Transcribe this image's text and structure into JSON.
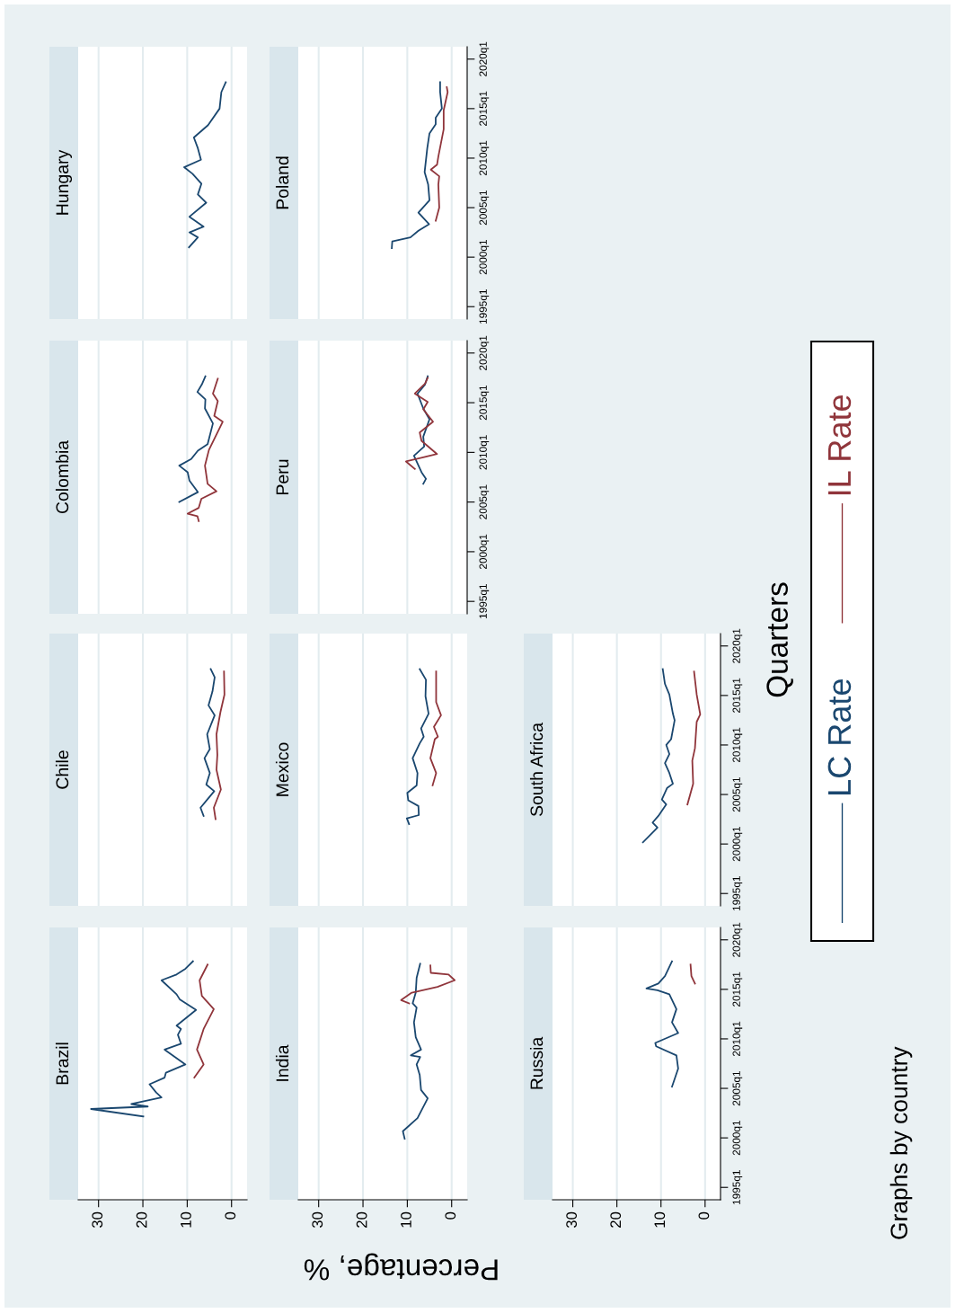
{
  "chart_data": [
    {
      "type": "line",
      "orientation": "horizontal",
      "title": "Brazil",
      "xlabel": "Percentage, %",
      "ylabel": "Quarters",
      "legend": "right",
      "annotations": [
        "Graphs by country"
      ],
      "xlim": [
        34.6,
        -3.5
      ],
      "xticks": [
        0,
        10,
        20,
        30
      ],
      "ylim": [
        "1993-10",
        "2021-04"
      ],
      "grid": "x",
      "tick_labels": "x",
      "series": [
        {
          "name": "LC Rate",
          "color": "#1a476f",
          "x": [
            "2002-03",
            "2002-12",
            "2003-03",
            "2003-06",
            "2004-02",
            "2004-08",
            "2005-06",
            "2006-02",
            "2006-08",
            "2007-06",
            "2008-12",
            "2009-07",
            "2010-06",
            "2011-01",
            "2011-05",
            "2012-12",
            "2014-01",
            "2014-07",
            "2015-12",
            "2016-07",
            "2017-02",
            "2017-11"
          ],
          "values": [
            19.9,
            31.7,
            18.9,
            22.6,
            15.8,
            17.0,
            18.5,
            15.1,
            14.8,
            10.4,
            15.1,
            11.4,
            12.1,
            11.4,
            12.4,
            8.0,
            11.7,
            12.4,
            15.8,
            12.4,
            10.4,
            8.7
          ]
        },
        {
          "name": "IL Rate",
          "color": "#90353b",
          "x": [
            "2006-02",
            "2007-06",
            "2008-12",
            "2011-01",
            "2013-01",
            "2014-05",
            "2015-12",
            "2017-07"
          ],
          "values": [
            8.4,
            6.3,
            7.8,
            6.3,
            4.0,
            6.7,
            7.2,
            5.4
          ]
        }
      ]
    },
    {
      "type": "line",
      "orientation": "horizontal",
      "title": "Chile",
      "xlim": [
        34.6,
        -3.5
      ],
      "xticks": [
        0,
        10,
        20,
        30
      ],
      "ylim": [
        "1993-10",
        "2021-04"
      ],
      "grid": "x",
      "tick_labels": false,
      "series": [
        {
          "color": "#1a476f",
          "x": [
            "2002-11",
            "2003-09",
            "2004-08",
            "2005-05",
            "2006-01",
            "2007-03",
            "2008-09",
            "2009-08",
            "2011-02",
            "2013-01",
            "2014-01",
            "2015-06",
            "2016-11",
            "2017-09"
          ],
          "values": [
            6.3,
            7.0,
            5.3,
            3.9,
            5.7,
            4.9,
            6.1,
            4.9,
            5.5,
            3.8,
            5.2,
            4.3,
            3.8,
            4.7
          ]
        },
        {
          "color": "#90353b",
          "x": [
            "2002-07",
            "2003-09",
            "2005-07",
            "2007-07",
            "2009-01",
            "2011-02",
            "2013-05",
            "2015-02",
            "2017-06"
          ],
          "values": [
            3.6,
            4.0,
            2.4,
            3.4,
            3.2,
            3.4,
            2.5,
            1.6,
            1.7
          ]
        }
      ]
    },
    {
      "type": "line",
      "orientation": "horizontal",
      "title": "Colombia",
      "xlim": [
        34.6,
        -3.5
      ],
      "xticks": [
        0,
        10,
        20,
        30
      ],
      "ylim": [
        "1993-10",
        "2021-04"
      ],
      "grid": "x",
      "tick_labels": false,
      "series": [
        {
          "color": "#1a476f",
          "x": [
            "2005-01",
            "2006-01",
            "2007-03",
            "2008-01",
            "2008-09",
            "2009-05",
            "2010-03",
            "2010-11",
            "2012-12",
            "2014-06",
            "2015-05",
            "2016-02",
            "2016-11",
            "2017-09"
          ],
          "values": [
            11.8,
            7.6,
            9.5,
            9.9,
            11.8,
            9.1,
            7.6,
            5.4,
            4.2,
            6.0,
            5.9,
            7.7,
            6.7,
            5.9
          ]
        },
        {
          "color": "#90353b",
          "x": [
            "2003-02",
            "2003-08",
            "2003-11",
            "2004-06",
            "2005-05",
            "2006-02",
            "2006-11",
            "2008-09",
            "2010-04",
            "2013-02",
            "2013-09",
            "2015-03",
            "2015-12",
            "2017-06"
          ],
          "values": [
            7.4,
            7.7,
            9.9,
            7.4,
            6.8,
            3.4,
            5.4,
            6.0,
            5.1,
            2.0,
            3.9,
            3.1,
            4.2,
            3.1
          ]
        }
      ]
    },
    {
      "type": "line",
      "orientation": "horizontal",
      "title": "Hungary",
      "xlim": [
        34.6,
        -3.5
      ],
      "xticks": [
        0,
        10,
        20,
        30
      ],
      "ylim": [
        "1993-10",
        "2021-04"
      ],
      "grid": "x",
      "tick_labels": false,
      "series": [
        {
          "color": "#1a476f",
          "x": [
            "2001-01",
            "2002-01",
            "2002-07",
            "2003-02",
            "2004-02",
            "2005-07",
            "2006-05",
            "2007-06",
            "2008-06",
            "2009-02",
            "2009-11",
            "2011-01",
            "2012-02",
            "2013-05",
            "2015-01",
            "2016-09",
            "2017-09"
          ],
          "values": [
            9.6,
            7.6,
            9.5,
            6.3,
            9.5,
            5.7,
            7.6,
            6.8,
            8.8,
            10.7,
            6.9,
            7.6,
            8.5,
            5.3,
            2.7,
            2.3,
            1.3
          ]
        }
      ]
    },
    {
      "type": "line",
      "orientation": "horizontal",
      "title": "India",
      "xlim": [
        34.6,
        -3.5
      ],
      "xticks": [
        0,
        10,
        20,
        30
      ],
      "ylim": [
        "1993-10",
        "2021-04"
      ],
      "grid": "x",
      "tick_labels": "x",
      "series": [
        {
          "color": "#1a476f",
          "x": [
            "1999-12",
            "2000-09",
            "2002-01",
            "2004-01",
            "2004-11",
            "2006-05",
            "2007-06",
            "2008-03",
            "2008-05",
            "2008-12",
            "2010-03",
            "2011-09",
            "2013-03",
            "2013-08",
            "2014-09",
            "2016-03",
            "2017-08"
          ],
          "values": [
            10.6,
            11.0,
            7.7,
            5.4,
            6.9,
            7.2,
            7.9,
            7.1,
            9.2,
            6.9,
            8.1,
            8.5,
            7.9,
            8.8,
            8.1,
            7.9,
            7.1
          ]
        },
        {
          "color": "#90353b",
          "x": [
            "2013-08",
            "2013-12",
            "2014-09",
            "2015-04",
            "2015-12",
            "2016-07",
            "2016-09",
            "2017-06"
          ],
          "values": [
            9.6,
            11.4,
            9.0,
            3.2,
            -0.7,
            0.7,
            4.7,
            4.8
          ]
        }
      ]
    },
    {
      "type": "line",
      "orientation": "horizontal",
      "title": "Mexico",
      "xlim": [
        34.6,
        -3.5
      ],
      "xticks": [
        0,
        10,
        20,
        30
      ],
      "ylim": [
        "1993-10",
        "2021-04"
      ],
      "grid": "x",
      "tick_labels": false,
      "series": [
        {
          "color": "#1a476f",
          "x": [
            "2002-01",
            "2002-08",
            "2002-12",
            "2003-11",
            "2004-06",
            "2005-03",
            "2005-12",
            "2007-03",
            "2008-09",
            "2010-03",
            "2010-11",
            "2011-09",
            "2013-03",
            "2014-12",
            "2016-08",
            "2017-09"
          ],
          "values": [
            9.6,
            10.1,
            7.4,
            7.5,
            9.8,
            10.0,
            7.9,
            7.7,
            8.8,
            7.2,
            6.3,
            6.9,
            5.2,
            5.9,
            5.8,
            7.2
          ]
        },
        {
          "color": "#90353b",
          "x": [
            "2005-12",
            "2007-03",
            "2008-09",
            "2010-08",
            "2010-11",
            "2011-11",
            "2013-01",
            "2014-05",
            "2016-01",
            "2017-06"
          ],
          "values": [
            4.3,
            3.5,
            4.8,
            3.8,
            3.1,
            4.0,
            2.4,
            3.5,
            3.5,
            3.5
          ]
        }
      ]
    },
    {
      "type": "line",
      "orientation": "horizontal",
      "title": "Peru",
      "xlim": [
        34.6,
        -3.5
      ],
      "xticks": [
        0,
        10,
        20,
        30
      ],
      "ylim": [
        "1993-10",
        "2021-04"
      ],
      "yticks": [
        {
          "value": "1995-01",
          "label": "1995q1"
        },
        {
          "value": "2000-01",
          "label": "2000q1"
        },
        {
          "value": "2005-01",
          "label": "2005q1"
        },
        {
          "value": "2010-01",
          "label": "2010q1"
        },
        {
          "value": "2015-01",
          "label": "2015q1"
        },
        {
          "value": "2020-01",
          "label": "2020q1"
        }
      ],
      "grid": "x",
      "tick_labels": "y",
      "series": [
        {
          "color": "#1a476f",
          "x": [
            "2006-11",
            "2007-05",
            "2008-01",
            "2009-09",
            "2010-08",
            "2011-08",
            "2013-05",
            "2014-06",
            "2015-12",
            "2016-11",
            "2017-09"
          ],
          "values": [
            6.4,
            5.8,
            6.8,
            8.5,
            6.2,
            6.4,
            5.0,
            6.4,
            7.7,
            6.0,
            5.4
          ]
        },
        {
          "color": "#90353b",
          "x": [
            "2008-05",
            "2009-02",
            "2009-11",
            "2011-03",
            "2012-01",
            "2013-02",
            "2014-05",
            "2015-02",
            "2015-12",
            "2016-12",
            "2017-07"
          ],
          "values": [
            8.3,
            10.3,
            3.3,
            6.8,
            7.2,
            4.2,
            6.4,
            5.4,
            8.3,
            6.0,
            5.4
          ]
        }
      ]
    },
    {
      "type": "line",
      "orientation": "horizontal",
      "title": "Poland",
      "xlim": [
        34.6,
        -3.5
      ],
      "xticks": [
        0,
        10,
        20,
        30
      ],
      "ylim": [
        "1993-10",
        "2021-04"
      ],
      "yticks": [
        {
          "value": "1995-01",
          "label": "1995q1"
        },
        {
          "value": "2000-01",
          "label": "2000q1"
        },
        {
          "value": "2005-01",
          "label": "2005q1"
        },
        {
          "value": "2010-01",
          "label": "2010q1"
        },
        {
          "value": "2015-01",
          "label": "2015q1"
        },
        {
          "value": "2020-01",
          "label": "2020q1"
        }
      ],
      "grid": "x",
      "tick_labels": "y",
      "series": [
        {
          "color": "#1a476f",
          "x": [
            "2000-12",
            "2001-08",
            "2002-01",
            "2002-09",
            "2003-05",
            "2004-07",
            "2005-10",
            "2007-05",
            "2008-08",
            "2011-01",
            "2012-07",
            "2013-06",
            "2014-02",
            "2015-01",
            "2016-09",
            "2017-09"
          ],
          "values": [
            13.5,
            13.4,
            9.3,
            7.5,
            5.1,
            7.5,
            5.0,
            5.3,
            6.1,
            5.5,
            5.0,
            3.6,
            3.6,
            2.2,
            2.6,
            2.6
          ]
        },
        {
          "color": "#90353b",
          "x": [
            "2003-09",
            "2005-01",
            "2007-05",
            "2008-03",
            "2008-11",
            "2009-05",
            "2010-03",
            "2012-12",
            "2014-11",
            "2016-09",
            "2017-03"
          ],
          "values": [
            3.6,
            2.8,
            3.0,
            2.8,
            4.7,
            3.3,
            3.0,
            1.8,
            1.8,
            0.9,
            1.1
          ]
        }
      ]
    },
    {
      "type": "line",
      "orientation": "horizontal",
      "title": "Russia",
      "xlim": [
        34.6,
        -3.5
      ],
      "xticks": [
        0,
        10,
        20,
        30
      ],
      "ylim": [
        "1993-10",
        "2021-04"
      ],
      "yticks": [
        {
          "value": "1995-01",
          "label": "1995q1"
        },
        {
          "value": "2000-01",
          "label": "2000q1"
        },
        {
          "value": "2005-01",
          "label": "2005q1"
        },
        {
          "value": "2010-01",
          "label": "2010q1"
        },
        {
          "value": "2015-01",
          "label": "2015q1"
        },
        {
          "value": "2020-01",
          "label": "2020q1"
        }
      ],
      "grid": "x",
      "series": [
        {
          "color": "#1a476f",
          "x": [
            "2005-03",
            "2007-01",
            "2008-05",
            "2009-04",
            "2009-08",
            "2010-08",
            "2011-09",
            "2013-01",
            "2014-07",
            "2014-12",
            "2015-02",
            "2015-08",
            "2016-05",
            "2017-11"
          ],
          "values": [
            7.5,
            6.1,
            6.5,
            11.1,
            11.3,
            6.1,
            7.5,
            6.5,
            8.1,
            10.8,
            13.3,
            10.6,
            9.1,
            7.5
          ]
        },
        {
          "color": "#90353b",
          "x": [
            "2015-08",
            "2016-05",
            "2017-07"
          ],
          "values": [
            2.3,
            3.1,
            3.3
          ]
        }
      ]
    },
    {
      "type": "line",
      "orientation": "horizontal",
      "title": "South Africa",
      "xlim": [
        34.6,
        -3.5
      ],
      "xticks": [
        0,
        10,
        20,
        30
      ],
      "ylim": [
        "1993-10",
        "2021-04"
      ],
      "yticks": [
        {
          "value": "1995-01",
          "label": "1995q1"
        },
        {
          "value": "2000-01",
          "label": "2000q1"
        },
        {
          "value": "2005-01",
          "label": "2005q1"
        },
        {
          "value": "2010-01",
          "label": "2010q1"
        },
        {
          "value": "2015-01",
          "label": "2015q1"
        },
        {
          "value": "2020-01",
          "label": "2020q1"
        }
      ],
      "grid": "x",
      "tick_labels": "y",
      "series": [
        {
          "color": "#1a476f",
          "x": [
            "2000-03",
            "2001-05",
            "2001-09",
            "2002-03",
            "2002-11",
            "2004-01",
            "2004-07",
            "2005-09",
            "2006-02",
            "2007-03",
            "2008-03",
            "2009-02",
            "2010-01",
            "2010-08",
            "2012-07",
            "2013-03",
            "2015-02",
            "2016-03",
            "2017-09"
          ],
          "values": [
            14.1,
            11.5,
            10.8,
            11.9,
            10.6,
            8.8,
            9.8,
            8.6,
            7.3,
            8.1,
            9.1,
            8.1,
            8.8,
            7.7,
            6.9,
            7.3,
            8.1,
            9.1,
            9.6
          ]
        },
        {
          "color": "#90353b",
          "x": [
            "2004-01",
            "2006-02",
            "2008-06",
            "2009-09",
            "2012-05",
            "2013-02",
            "2015-02",
            "2017-06"
          ],
          "values": [
            4.0,
            2.7,
            2.9,
            2.3,
            1.9,
            1.1,
            1.9,
            2.5
          ]
        }
      ]
    }
  ]
}
